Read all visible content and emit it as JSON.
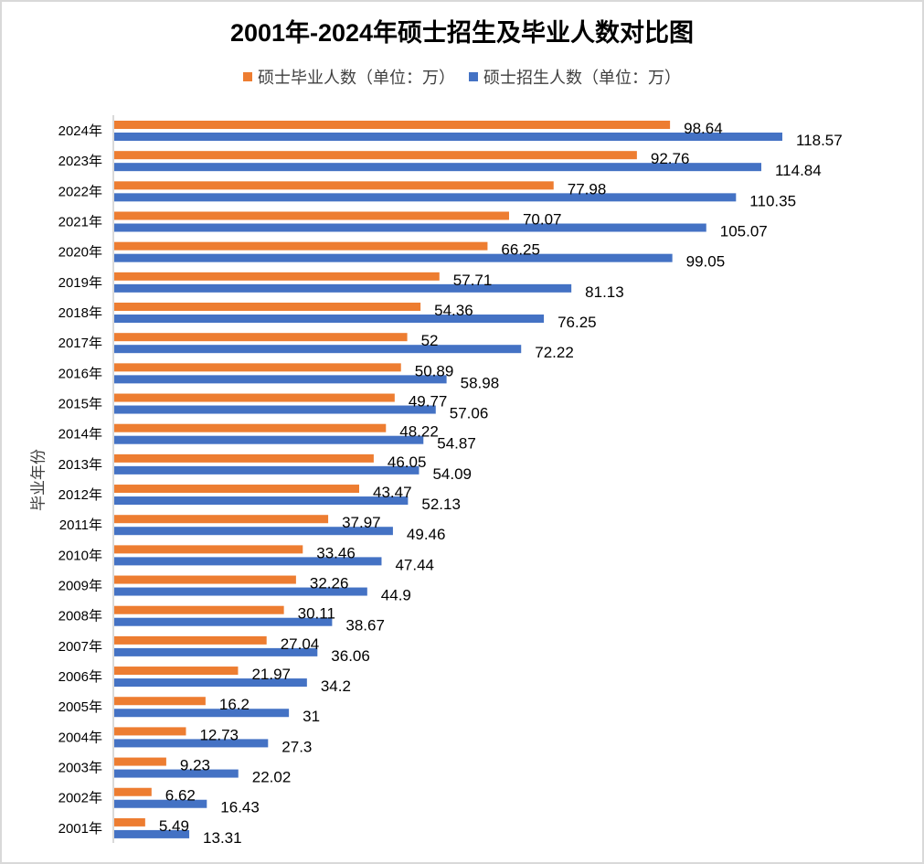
{
  "chart_data": {
    "type": "bar",
    "orientation": "horizontal",
    "title": "2001年-2024年硕士招生及毕业人数对比图",
    "xlabel": "",
    "ylabel": "毕业年份",
    "legend_position": "top",
    "grid": false,
    "xlim": [
      0,
      120
    ],
    "categories": [
      "2024年",
      "2023年",
      "2022年",
      "2021年",
      "2020年",
      "2019年",
      "2018年",
      "2017年",
      "2016年",
      "2015年",
      "2014年",
      "2013年",
      "2012年",
      "2011年",
      "2010年",
      "2009年",
      "2008年",
      "2007年",
      "2006年",
      "2005年",
      "2004年",
      "2003年",
      "2002年",
      "2001年"
    ],
    "series": [
      {
        "name": "硕士毕业人数（单位：万）",
        "color": "#ED7D31",
        "values": [
          98.64,
          92.76,
          77.98,
          70.07,
          66.25,
          57.71,
          54.36,
          52,
          50.89,
          49.77,
          48.22,
          46.05,
          43.47,
          37.97,
          33.46,
          32.26,
          30.11,
          27.04,
          21.97,
          16.2,
          12.73,
          9.23,
          6.62,
          5.49
        ]
      },
      {
        "name": "硕士招生人数（单位：万）",
        "color": "#4472C4",
        "values": [
          118.57,
          114.84,
          110.35,
          105.07,
          99.05,
          81.13,
          76.25,
          72.22,
          58.98,
          57.06,
          54.87,
          54.09,
          52.13,
          49.46,
          47.44,
          44.9,
          38.67,
          36.06,
          34.2,
          31,
          27.3,
          22.02,
          16.43,
          13.31
        ]
      }
    ]
  }
}
